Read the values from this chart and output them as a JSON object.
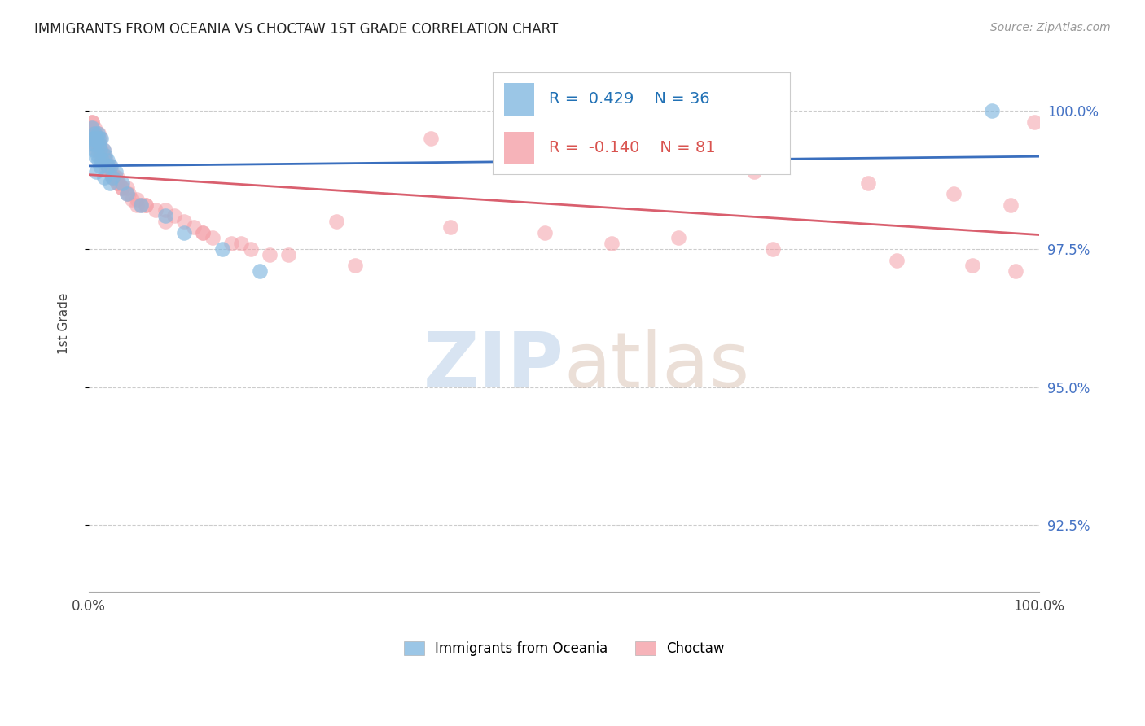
{
  "title": "IMMIGRANTS FROM OCEANIA VS CHOCTAW 1ST GRADE CORRELATION CHART",
  "source_text": "Source: ZipAtlas.com",
  "ylabel": "1st Grade",
  "legend_label1": "Immigrants from Oceania",
  "legend_label2": "Choctaw",
  "R_blue": 0.429,
  "N_blue": 36,
  "R_pink": -0.14,
  "N_pink": 81,
  "xmin": 0.0,
  "xmax": 100.0,
  "ymin": 91.3,
  "ymax": 101.0,
  "yticks": [
    92.5,
    95.0,
    97.5,
    100.0
  ],
  "blue_color": "#82b8e0",
  "pink_color": "#f4a0a8",
  "blue_line_color": "#3a6fbe",
  "pink_line_color": "#d95f6e",
  "blue_x": [
    0.4,
    0.4,
    0.5,
    0.6,
    0.7,
    0.8,
    0.9,
    1.0,
    1.1,
    1.2,
    1.3,
    1.5,
    1.7,
    2.0,
    2.3,
    2.8,
    3.5,
    0.3,
    0.5,
    0.9,
    1.4,
    2.5,
    4.0,
    5.5,
    8.0,
    10.0,
    14.0,
    18.0,
    2.0,
    1.0,
    0.6,
    0.8,
    1.2,
    1.6,
    2.2,
    95.0
  ],
  "blue_y": [
    99.5,
    99.4,
    99.5,
    99.6,
    99.4,
    99.5,
    99.6,
    99.5,
    99.4,
    99.3,
    99.5,
    99.3,
    99.2,
    99.1,
    99.0,
    98.9,
    98.7,
    99.7,
    99.3,
    99.2,
    99.1,
    98.8,
    98.5,
    98.3,
    98.1,
    97.8,
    97.5,
    97.1,
    99.0,
    99.1,
    99.2,
    98.9,
    99.0,
    98.8,
    98.7,
    100.0
  ],
  "pink_x": [
    0.2,
    0.3,
    0.4,
    0.5,
    0.6,
    0.7,
    0.8,
    0.9,
    1.0,
    1.1,
    1.2,
    1.3,
    1.5,
    1.6,
    1.8,
    2.0,
    2.2,
    2.4,
    2.6,
    2.8,
    3.0,
    3.2,
    3.5,
    4.0,
    4.5,
    5.0,
    5.5,
    6.0,
    7.0,
    8.0,
    9.0,
    10.0,
    11.0,
    12.0,
    13.0,
    15.0,
    17.0,
    19.0,
    0.4,
    0.6,
    0.8,
    1.0,
    1.2,
    1.4,
    1.7,
    2.1,
    2.5,
    3.0,
    3.5,
    4.2,
    5.0,
    0.3,
    0.5,
    0.9,
    1.5,
    2.0,
    3.0,
    4.0,
    6.0,
    8.0,
    12.0,
    16.0,
    21.0,
    28.0,
    36.0,
    46.0,
    58.0,
    70.0,
    82.0,
    91.0,
    97.0,
    99.5,
    55.0,
    72.0,
    85.0,
    93.0,
    97.5,
    26.0,
    38.0,
    48.0,
    62.0
  ],
  "pink_y": [
    99.7,
    99.8,
    99.6,
    99.5,
    99.7,
    99.6,
    99.5,
    99.4,
    99.6,
    99.4,
    99.5,
    99.3,
    99.3,
    99.2,
    99.1,
    99.0,
    99.0,
    98.9,
    98.8,
    98.8,
    98.7,
    98.7,
    98.6,
    98.5,
    98.4,
    98.4,
    98.3,
    98.3,
    98.2,
    98.2,
    98.1,
    98.0,
    97.9,
    97.8,
    97.7,
    97.6,
    97.5,
    97.4,
    99.5,
    99.4,
    99.3,
    99.3,
    99.2,
    99.1,
    99.0,
    98.9,
    98.8,
    98.7,
    98.6,
    98.5,
    98.3,
    99.8,
    99.6,
    99.4,
    99.2,
    99.0,
    98.8,
    98.6,
    98.3,
    98.0,
    97.8,
    97.6,
    97.4,
    97.2,
    99.5,
    99.3,
    99.1,
    98.9,
    98.7,
    98.5,
    98.3,
    99.8,
    97.6,
    97.5,
    97.3,
    97.2,
    97.1,
    98.0,
    97.9,
    97.8,
    97.7
  ]
}
